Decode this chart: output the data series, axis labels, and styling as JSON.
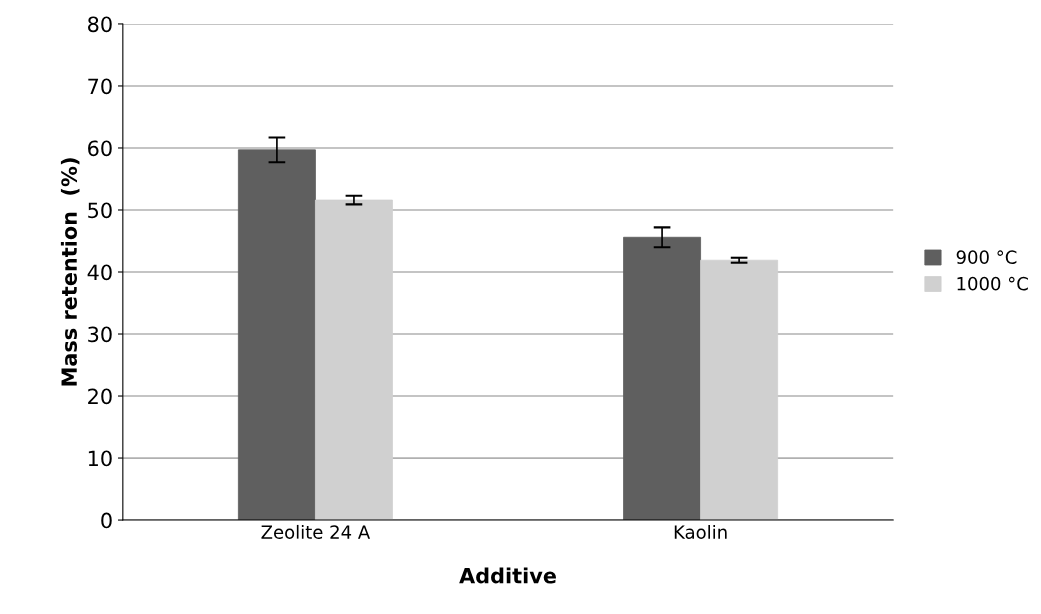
{
  "chart_data": {
    "type": "bar",
    "xlabel": "Additive",
    "ylabel": "Mass retention  (%)",
    "categories": [
      "Zeolite 24 A",
      "Kaolin"
    ],
    "series": [
      {
        "name": "900 °C",
        "color": "#5f5f5f",
        "values": [
          59.7,
          45.6
        ],
        "errors": [
          2.0,
          1.6
        ]
      },
      {
        "name": "1000 °C",
        "color": "#d0d0d0",
        "values": [
          51.6,
          41.9
        ],
        "errors": [
          0.7,
          0.4
        ]
      }
    ],
    "ylim": [
      0,
      80
    ],
    "yticks": [
      0,
      10,
      20,
      30,
      40,
      50,
      60,
      70,
      80
    ],
    "grid": "y",
    "legend": "right"
  }
}
